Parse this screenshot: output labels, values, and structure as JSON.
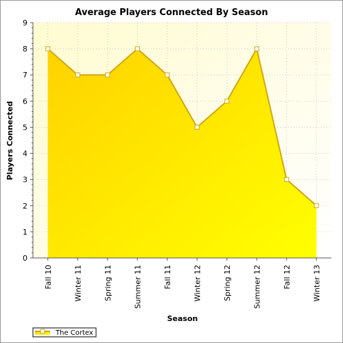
{
  "chart_data": {
    "type": "area",
    "title": "Average Players Connected By Season",
    "xlabel": "Season",
    "ylabel": "Players Connected",
    "categories": [
      "Fall 10",
      "Winter 11",
      "Spring 11",
      "Summer 11",
      "Fall 11",
      "Winter 12",
      "Spring 12",
      "Summer 12",
      "Fall 12",
      "Winter 13"
    ],
    "series": [
      {
        "name": "The Cortex",
        "color": "#d4a514",
        "values": [
          8,
          7,
          7,
          8,
          7,
          5,
          6,
          8,
          3,
          2
        ]
      }
    ],
    "ylim": [
      0,
      9
    ],
    "yticks": [
      0,
      1,
      2,
      3,
      4,
      5,
      6,
      7,
      8,
      9
    ],
    "grid": true,
    "legend": "lower left"
  }
}
